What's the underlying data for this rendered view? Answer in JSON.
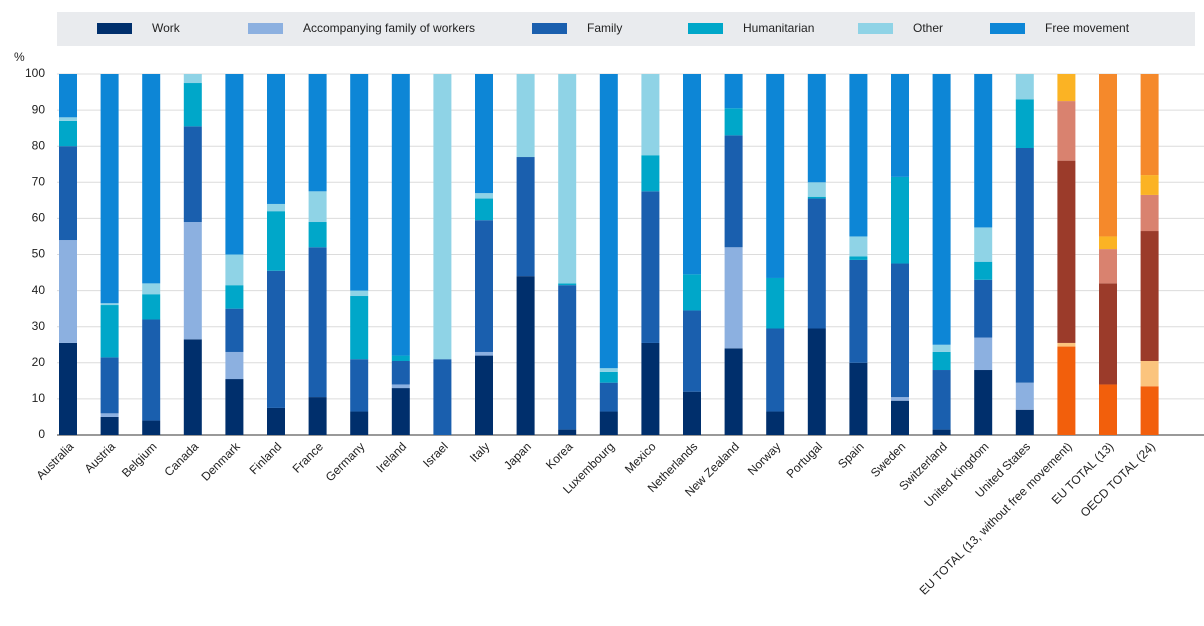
{
  "chart_data": {
    "type": "stacked_bar",
    "y_label": "%",
    "categories": [
      "Australia",
      "Austria",
      "Belgium",
      "Canada",
      "Denmark",
      "Finland",
      "France",
      "Germany",
      "Ireland",
      "Israel",
      "Italy",
      "Japan",
      "Korea",
      "Luxembourg",
      "Mexico",
      "Netherlands",
      "New Zealand",
      "Norway",
      "Portugal",
      "Spain",
      "Sweden",
      "Switzerland",
      "United Kingdom",
      "United States",
      "EU TOTAL (13, without free movement)",
      "EU TOTAL (13)",
      "OECD TOTAL (24)"
    ],
    "highlight_categories": [
      "EU TOTAL (13, without free movement)",
      "EU TOTAL (13)",
      "OECD TOTAL (24)"
    ],
    "series": [
      {
        "name": "Work",
        "color": "#002f6c",
        "highlight_color": "#f25f0c",
        "values": [
          25.5,
          5,
          4,
          26.5,
          15.5,
          7.5,
          10.5,
          6.5,
          13,
          0,
          22,
          44,
          1.5,
          6.5,
          25.5,
          12,
          24,
          6.5,
          29.5,
          20,
          9.5,
          1.5,
          18,
          7,
          24.5,
          14,
          13.5
        ]
      },
      {
        "name": "Accompanying family of workers",
        "color": "#8cb0e0",
        "highlight_color": "#fbc47d",
        "values": [
          28.5,
          1,
          0,
          32.5,
          7.5,
          0,
          0,
          0,
          1,
          0,
          1,
          0,
          0,
          0,
          0,
          0,
          28,
          0,
          0,
          0,
          1,
          0,
          9,
          7.5,
          1,
          0,
          7
        ]
      },
      {
        "name": "Family",
        "color": "#1a5fae",
        "highlight_color": "#9b3b2a",
        "values": [
          26,
          15.5,
          28,
          26.5,
          12,
          38,
          41.5,
          14.5,
          6.5,
          21,
          36.5,
          33,
          40,
          8,
          42,
          22.5,
          31,
          23,
          36,
          28.5,
          37,
          16.5,
          16,
          65,
          50.5,
          28,
          36
        ]
      },
      {
        "name": "Humanitarian",
        "color": "#00a7c9",
        "highlight_color": "#d9826f",
        "values": [
          7,
          14.5,
          7,
          12,
          6.5,
          16.5,
          7,
          17.5,
          1.5,
          0,
          6,
          0,
          0.5,
          3,
          10,
          10,
          7.5,
          14,
          0.5,
          1,
          24,
          5,
          5,
          13.5,
          16.5,
          9.5,
          10
        ]
      },
      {
        "name": "Other",
        "color": "#8fd3e6",
        "highlight_color": "#fbb324",
        "values": [
          1,
          0.5,
          3,
          2.5,
          8.5,
          2,
          8.5,
          1.5,
          0,
          79,
          1.5,
          23,
          58,
          1,
          22.5,
          0,
          0,
          0,
          4,
          5.5,
          0,
          2,
          9.5,
          7,
          7.5,
          3.5,
          5.5
        ]
      },
      {
        "name": "Free movement",
        "color": "#0d86d6",
        "highlight_color": "#f5892b",
        "values": [
          12,
          63.5,
          58,
          0,
          50,
          36,
          32.5,
          60,
          78,
          0,
          33,
          0,
          0,
          81.5,
          0,
          55.5,
          9.5,
          56.5,
          30,
          45,
          28.5,
          75,
          42.5,
          0,
          0,
          45,
          28
        ]
      }
    ],
    "ylim": [
      0,
      100
    ],
    "yticks": [
      0,
      10,
      20,
      30,
      40,
      50,
      60,
      70,
      80,
      90,
      100
    ],
    "grid": true
  }
}
